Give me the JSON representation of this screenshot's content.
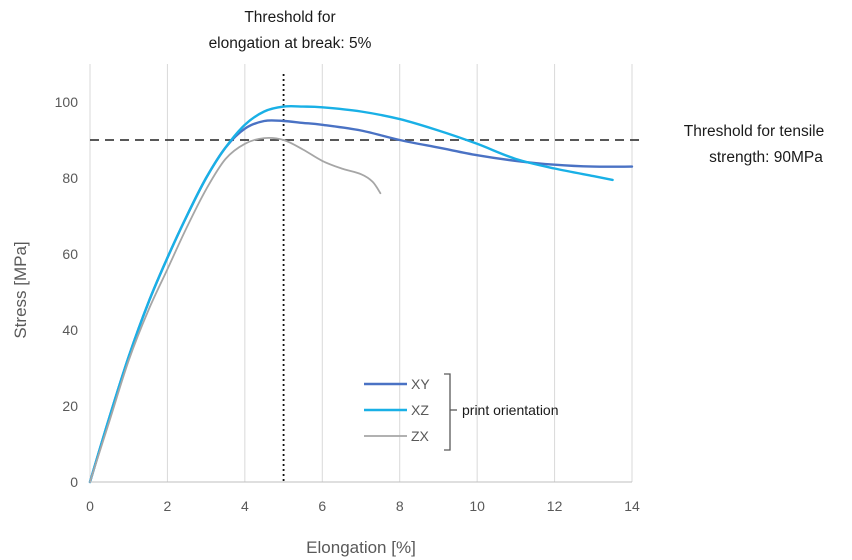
{
  "chart_data": {
    "type": "line",
    "xlabel": "Elongation [%]",
    "ylabel": "Stress [MPa]",
    "xlim": [
      0,
      14
    ],
    "ylim": [
      0,
      110
    ],
    "xticks": [
      0,
      2,
      4,
      6,
      8,
      10,
      12,
      14
    ],
    "yticks": [
      0,
      20,
      40,
      60,
      80,
      100
    ],
    "grid": "vertical",
    "series": [
      {
        "name": "XY",
        "color": "#4a72c4",
        "x": [
          0,
          0.5,
          1,
          1.5,
          2,
          2.5,
          3,
          3.5,
          4,
          4.5,
          5,
          5.5,
          6,
          7,
          8,
          9,
          10,
          11,
          12,
          13,
          14
        ],
        "y": [
          0,
          17,
          33,
          47,
          59,
          70,
          80,
          88,
          93,
          95,
          95,
          94.5,
          94,
          92.5,
          90,
          88,
          86,
          84.5,
          83.5,
          83,
          83
        ]
      },
      {
        "name": "XZ",
        "color": "#19b0e6",
        "x": [
          0,
          0.5,
          1,
          1.5,
          2,
          2.5,
          3,
          3.5,
          4,
          4.5,
          5,
          5.5,
          6,
          7,
          8,
          9,
          10,
          11,
          12,
          13,
          13.5
        ],
        "y": [
          0,
          17,
          33,
          47,
          59,
          70,
          80,
          88,
          94,
          97.5,
          98.8,
          98.8,
          98.6,
          97.5,
          95.5,
          92.5,
          89,
          85,
          82.5,
          80.5,
          79.5
        ]
      },
      {
        "name": "ZX",
        "color": "#a6a6a6",
        "x": [
          0,
          0.5,
          1,
          1.5,
          2,
          2.5,
          3,
          3.5,
          4,
          4.5,
          5,
          5.5,
          6,
          6.5,
          7,
          7.3,
          7.5
        ],
        "y": [
          0,
          16,
          32,
          45,
          56,
          67,
          77,
          85,
          89,
          90.5,
          90,
          87.5,
          84.5,
          82.5,
          81,
          79,
          76
        ]
      }
    ],
    "legend": {
      "position": "inside-bottom-right",
      "group_label": "print orientation"
    },
    "reference_lines": [
      {
        "axis": "y",
        "value": 90,
        "style": "dashed",
        "color": "#404040",
        "label": "Threshold for tensile strength: 90MPa"
      },
      {
        "axis": "x",
        "value": 5,
        "style": "dotted",
        "color": "#111111",
        "label": "Threshold for elongation at break: 5%"
      }
    ],
    "annotations": {
      "elongation_line1": "Threshold for",
      "elongation_line2": "elongation at break: 5%",
      "tensile_line1": "Threshold for tensile",
      "tensile_line2": "strength: 90MPa"
    }
  }
}
